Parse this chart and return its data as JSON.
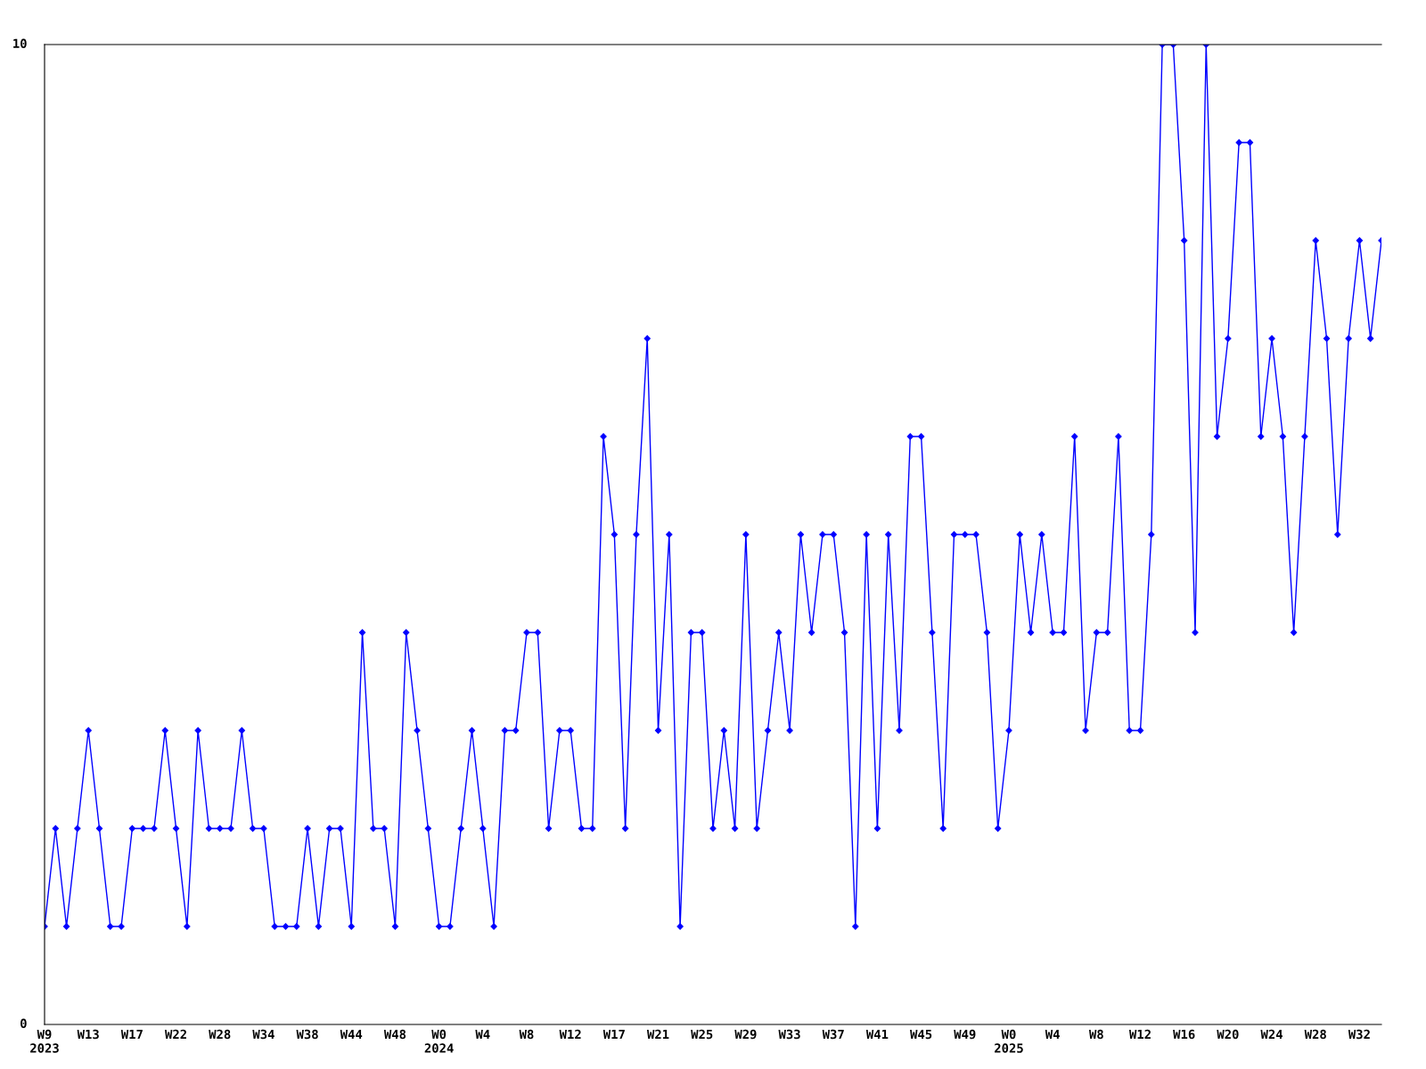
{
  "chart_data": {
    "type": "line",
    "categories": [
      "W9\n2023",
      null,
      null,
      null,
      "W13",
      null,
      null,
      null,
      "W17",
      null,
      null,
      null,
      "W22",
      null,
      null,
      null,
      "W28",
      null,
      null,
      null,
      "W34",
      null,
      null,
      null,
      "W38",
      null,
      null,
      null,
      "W44",
      null,
      null,
      null,
      "W48",
      null,
      null,
      null,
      "W0\n2024",
      null,
      null,
      null,
      "W4",
      null,
      null,
      null,
      "W8",
      null,
      null,
      null,
      "W12",
      null,
      null,
      null,
      "W17",
      null,
      null,
      null,
      "W21",
      null,
      null,
      null,
      "W25",
      null,
      null,
      null,
      "W29",
      null,
      null,
      null,
      "W33",
      null,
      null,
      null,
      "W37",
      null,
      null,
      null,
      "W41",
      null,
      null,
      null,
      "W45",
      null,
      null,
      null,
      "W49",
      null,
      null,
      null,
      "W0\n2025",
      null,
      null,
      null,
      "W4",
      null,
      null,
      null,
      "W8",
      null,
      null,
      null,
      "W12",
      null,
      null,
      null,
      "W16",
      null,
      null,
      null,
      "W20",
      null,
      null,
      null,
      "W24",
      null,
      null,
      null,
      "W28",
      null,
      null,
      null,
      "W32",
      null,
      null
    ],
    "series": [
      {
        "color": "#0000ff",
        "values": [
          1,
          2,
          1,
          2,
          3,
          2,
          1,
          1,
          2,
          2,
          2,
          3,
          2,
          1,
          3,
          2,
          2,
          2,
          3,
          2,
          2,
          1,
          1,
          1,
          2,
          1,
          2,
          2,
          1,
          4,
          2,
          2,
          1,
          4,
          3,
          2,
          1,
          1,
          2,
          3,
          2,
          1,
          3,
          3,
          4,
          4,
          2,
          3,
          3,
          2,
          2,
          6,
          5,
          2,
          5,
          7,
          3,
          5,
          1,
          4,
          4,
          2,
          3,
          2,
          5,
          2,
          3,
          4,
          3,
          5,
          4,
          5,
          5,
          4,
          1,
          5,
          2,
          5,
          3,
          6,
          6,
          4,
          2,
          5,
          5,
          5,
          4,
          2,
          3,
          5,
          4,
          5,
          4,
          4,
          6,
          3,
          4,
          4,
          6,
          3,
          3,
          5,
          10,
          10,
          8,
          4,
          10,
          6,
          7,
          9,
          9,
          6,
          7,
          6,
          4,
          6,
          8,
          7,
          5,
          7,
          8,
          7,
          8
        ]
      }
    ],
    "ylim": [
      0,
      10
    ],
    "yticks": [
      0,
      10
    ],
    "grid": false,
    "marker": "diamond",
    "line_style": "solid"
  }
}
